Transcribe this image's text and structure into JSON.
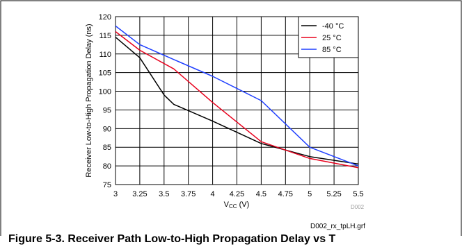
{
  "figure": {
    "caption": "Figure 5-3. Receiver Path Low-to-High Propagation Delay vs T",
    "graph_id": "D002",
    "file_name": "D002_rx_tpLH.grf"
  },
  "chart_data": {
    "type": "line",
    "xlabel_main": "V",
    "xlabel_sub": "CC",
    "xlabel_unit": " (V)",
    "ylabel": "Receiver Low-to-High Propagation Delay (ns)",
    "xlim": [
      3,
      5.5
    ],
    "ylim": [
      75,
      120
    ],
    "x_ticks": [
      "3",
      "3.25",
      "3.5",
      "3.75",
      "4",
      "4.25",
      "4.5",
      "4.75",
      "5",
      "5.25",
      "5.5"
    ],
    "y_ticks": [
      "75",
      "80",
      "85",
      "90",
      "95",
      "100",
      "105",
      "110",
      "115",
      "120"
    ],
    "grid": true,
    "legend_position": "top-right",
    "series": [
      {
        "name": "-40 °C",
        "color": "#000000",
        "x": [
          3,
          3.25,
          3.5,
          3.6,
          4.0,
          4.5,
          5.0,
          5.5
        ],
        "y": [
          114.5,
          109,
          99,
          96.5,
          92,
          86,
          82.5,
          80.5
        ]
      },
      {
        "name": "25 °C",
        "color": "#e8001c",
        "x": [
          3,
          3.25,
          3.6,
          4.0,
          4.5,
          5.0,
          5.5
        ],
        "y": [
          116,
          111,
          106,
          97,
          86.5,
          82,
          79.5
        ]
      },
      {
        "name": "85 °C",
        "color": "#1f3fff",
        "x": [
          3,
          3.25,
          3.6,
          4.0,
          4.5,
          5.0,
          5.5
        ],
        "y": [
          117.5,
          112.5,
          108.5,
          104,
          97.5,
          85,
          80
        ]
      }
    ]
  }
}
